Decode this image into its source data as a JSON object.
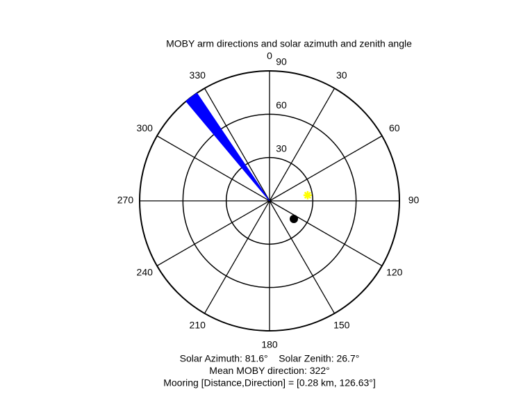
{
  "chart_data": {
    "type": "polar",
    "title": "MOBY arm directions and solar azimuth and zenith angle",
    "zero": "north",
    "direction": "clockwise",
    "thetaticks": [
      0,
      30,
      60,
      90,
      120,
      150,
      180,
      210,
      240,
      270,
      300,
      330
    ],
    "rlim": [
      0,
      90
    ],
    "rticks": [
      30,
      60,
      90
    ],
    "wedge": {
      "theta": [
        320,
        326
      ],
      "r": 90,
      "color": "#0000ff"
    },
    "sun": {
      "theta": 81.6,
      "r": 26.7,
      "color": "#ffff00",
      "marker": "star"
    },
    "mooring": {
      "theta": 126.63,
      "r": 21,
      "color": "#000000",
      "marker": "dot"
    },
    "annotations": [
      "Solar Azimuth: 81.6°    Solar Zenith: 26.7°",
      "Mean MOBY direction: 322°",
      "Mooring [Distance,Direction] = [0.28 km, 126.63°]"
    ]
  }
}
